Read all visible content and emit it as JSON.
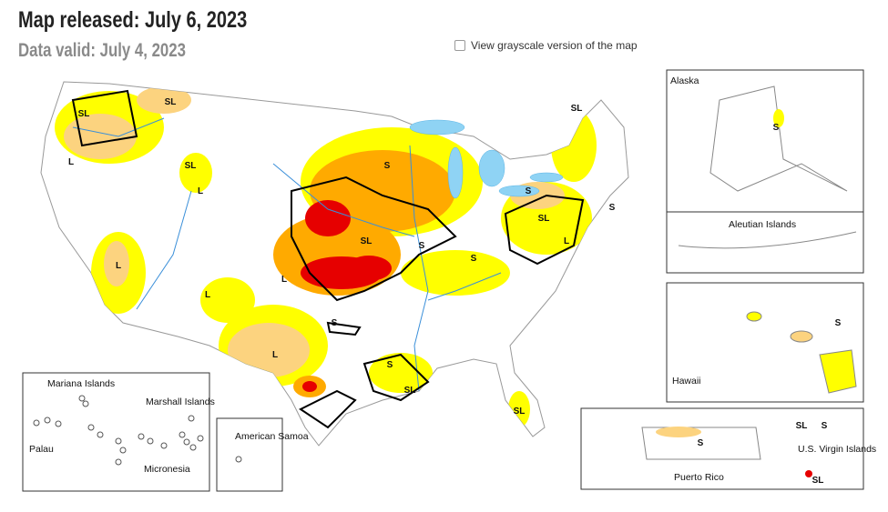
{
  "header": {
    "title": "Map released: July 6, 2023",
    "subtitle": "Data valid: July 4, 2023"
  },
  "controls": {
    "grayscale_checkbox": "View grayscale version of the map"
  },
  "insets": {
    "alaska": "Alaska",
    "aleutian": "Aleutian Islands",
    "hawaii": "Hawaii",
    "puerto_rico": "Puerto Rico",
    "virgin_islands": "U.S. Virgin Islands",
    "american_samoa": "American Samoa",
    "mariana": "Mariana Islands",
    "marshall": "Marshall Islands",
    "palau": "Palau",
    "micronesia": "Micronesia"
  },
  "impact_labels": [
    "SL",
    "SL",
    "L",
    "SL",
    "L",
    "S",
    "SL",
    "L",
    "L",
    "L",
    "S",
    "L",
    "S",
    "SL",
    "S",
    "S",
    "SL",
    "S",
    "S",
    "SL",
    "L",
    "SL",
    "S",
    "S",
    "S",
    "SL",
    "S",
    "SL"
  ]
}
